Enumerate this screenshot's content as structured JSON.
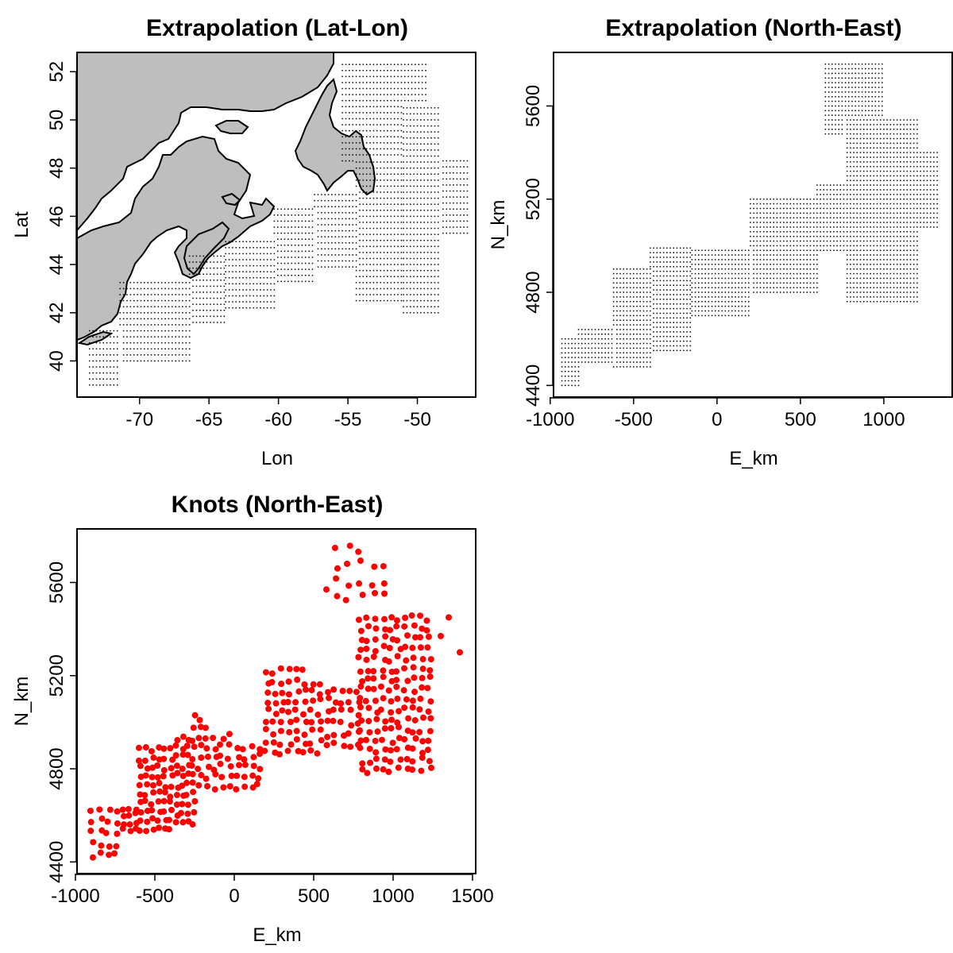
{
  "chart_data": [
    {
      "type": "scatter",
      "title": "Extrapolation (Lat-Lon)",
      "xlabel": "Lon",
      "ylabel": "Lat",
      "xlim": [
        -74.5,
        -45.8
      ],
      "ylim": [
        38.5,
        52.8
      ],
      "xticks": [
        -70,
        -65,
        -60,
        -55,
        -50
      ],
      "yticks": [
        40,
        42,
        44,
        46,
        48,
        50,
        52
      ],
      "xtick_labels": [
        "-70",
        "-65",
        "-60",
        "-55",
        "-50"
      ],
      "ytick_labels": [
        "40",
        "42",
        "44",
        "46",
        "48",
        "50",
        "52"
      ],
      "grid": false,
      "background_map": "land",
      "land_color": "#bebebe",
      "point_color": "#000000",
      "extrapolation_grid_spacing_deg": 0.25,
      "regions": [
        {
          "x": [
            -73.6,
            -71.4
          ],
          "y": [
            39.0,
            41.3
          ]
        },
        {
          "x": [
            -71.4,
            -66.4
          ],
          "y": [
            40.0,
            43.3
          ]
        },
        {
          "x": [
            -66.4,
            -63.8
          ],
          "y": [
            41.6,
            44.5
          ]
        },
        {
          "x": [
            -63.8,
            -60.3
          ],
          "y": [
            42.2,
            45.1
          ]
        },
        {
          "x": [
            -60.3,
            -57.4
          ],
          "y": [
            43.3,
            46.5
          ]
        },
        {
          "x": [
            -57.4,
            -54.4
          ],
          "y": [
            43.9,
            47.0
          ]
        },
        {
          "x": [
            -54.4,
            -51.0
          ],
          "y": [
            42.5,
            48.3
          ]
        },
        {
          "x": [
            -51.0,
            -48.4
          ],
          "y": [
            42.0,
            50.5
          ]
        },
        {
          "x": [
            -48.4,
            -46.3
          ],
          "y": [
            45.3,
            48.3
          ]
        },
        {
          "x": [
            -55.4,
            -49.4
          ],
          "y": [
            48.3,
            52.4
          ]
        }
      ]
    },
    {
      "type": "scatter",
      "title": "Extrapolation (North-East)",
      "xlabel": "E_km",
      "ylabel": "N_km",
      "xlim": [
        -980,
        1410
      ],
      "ylim": [
        4350,
        5830
      ],
      "xticks": [
        -1000,
        -500,
        0,
        500,
        1000
      ],
      "yticks": [
        4400,
        4800,
        5200,
        5600
      ],
      "xtick_labels": [
        "-1000",
        "-500",
        "0",
        "500",
        "1000"
      ],
      "ytick_labels": [
        "4400",
        "4800",
        "5200",
        "5600"
      ],
      "grid": false,
      "point_color": "#000000",
      "extrapolation_grid_spacing_km": 20,
      "regions": [
        {
          "x": [
            -930,
            -830
          ],
          "y": [
            4400,
            4600
          ]
        },
        {
          "x": [
            -830,
            -620
          ],
          "y": [
            4500,
            4650
          ]
        },
        {
          "x": [
            -620,
            -400
          ],
          "y": [
            4480,
            4900
          ]
        },
        {
          "x": [
            -400,
            -150
          ],
          "y": [
            4550,
            5000
          ]
        },
        {
          "x": [
            -150,
            200
          ],
          "y": [
            4700,
            4980
          ]
        },
        {
          "x": [
            200,
            600
          ],
          "y": [
            4800,
            5200
          ]
        },
        {
          "x": [
            600,
            780
          ],
          "y": [
            4980,
            5260
          ]
        },
        {
          "x": [
            780,
            1200
          ],
          "y": [
            4760,
            5550
          ]
        },
        {
          "x": [
            1200,
            1320
          ],
          "y": [
            5080,
            5400
          ]
        },
        {
          "x": [
            650,
            1000
          ],
          "y": [
            5480,
            5790
          ]
        }
      ]
    },
    {
      "type": "scatter",
      "title": "Knots (North-East)",
      "xlabel": "E_km",
      "ylabel": "N_km",
      "xlim": [
        -990,
        1520
      ],
      "ylim": [
        4350,
        5830
      ],
      "xticks": [
        -1000,
        -500,
        0,
        500,
        1000,
        1500
      ],
      "yticks": [
        4400,
        4800,
        5200,
        5600
      ],
      "xtick_labels": [
        "-1000",
        "-500",
        "0",
        "500",
        "1000",
        "1500"
      ],
      "ytick_labels": [
        "4400",
        "4800",
        "5200",
        "5600"
      ],
      "grid": false,
      "point_color": "#ff0000",
      "knot_regions": [
        {
          "x": [
            -920,
            -720
          ],
          "y": [
            4400,
            4650
          ],
          "n": 20
        },
        {
          "x": [
            -720,
            -600
          ],
          "y": [
            4520,
            4650
          ],
          "n": 12
        },
        {
          "x": [
            -610,
            -380
          ],
          "y": [
            4520,
            4900
          ],
          "n": 60
        },
        {
          "x": [
            -380,
            -240
          ],
          "y": [
            4550,
            4950
          ],
          "n": 40
        },
        {
          "x": [
            -270,
            -150
          ],
          "y": [
            4960,
            5040
          ],
          "n": 5
        },
        {
          "x": [
            -240,
            180
          ],
          "y": [
            4700,
            4960
          ],
          "n": 50
        },
        {
          "x": [
            180,
            560
          ],
          "y": [
            4850,
            5240
          ],
          "n": 70
        },
        {
          "x": [
            560,
            800
          ],
          "y": [
            4880,
            5160
          ],
          "n": 30
        },
        {
          "x": [
            770,
            1250
          ],
          "y": [
            4770,
            5470
          ],
          "n": 160
        },
        {
          "x": [
            590,
            980
          ],
          "y": [
            5500,
            5780
          ],
          "n": 18
        }
      ],
      "extra_points": [
        {
          "x": 1350,
          "y": 5450
        },
        {
          "x": 1420,
          "y": 5300
        },
        {
          "x": 1300,
          "y": 5370
        },
        {
          "x": 580,
          "y": 5570
        }
      ]
    }
  ]
}
